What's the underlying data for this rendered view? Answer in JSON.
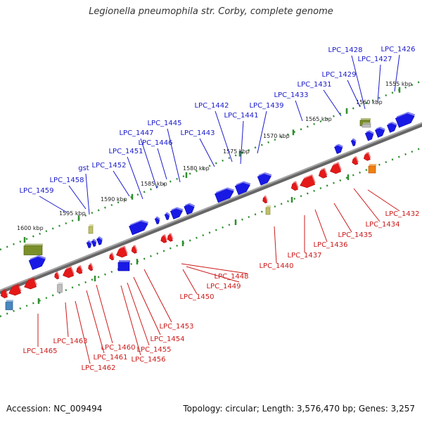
{
  "title": "Legionella pneumophila str. Corby, complete genome",
  "footer": {
    "accession": "Accession: NC_009494",
    "summary": "Topology: circular; Length: 3,576,470 bp; Genes: 3,257"
  },
  "colors": {
    "plus_strand": "#1a1ae6",
    "minus_strand": "#e61a1a",
    "backbone": "#808080",
    "ruler_dots": "#2f8f2f",
    "olive_feature": "#7a8f2a",
    "khaki_feature": "#bfbf6a",
    "gray_feature": "#bfbfbf",
    "orange_feature": "#f08010",
    "steel_feature": "#4a86c0"
  },
  "kbp_ticks": [
    "1555 kbp",
    "1560 kbp",
    "1565 kbp",
    "1570 kbp",
    "1575 kbp",
    "1580 kbp",
    "1585 kbp",
    "1590 kbp",
    "1595 kbp",
    "1600 kbp"
  ],
  "top_labels": [
    "LPC_1426",
    "LPC_1427",
    "LPC_1428",
    "LPC_1429",
    "LPC_1431",
    "LPC_1433",
    "LPC_1439",
    "LPC_1441",
    "LPC_1442",
    "LPC_1443",
    "LPC_1445",
    "LPC_1446",
    "LPC_1447",
    "LPC_1451",
    "LPC_1452",
    "gst",
    "LPC_1458",
    "LPC_1459"
  ],
  "bottom_labels": [
    "LPC_1432",
    "LPC_1434",
    "LPC_1435",
    "LPC_1436",
    "LPC_1437",
    "LPC_1440",
    "LPC_1448",
    "LPC_1449",
    "LPC_1450",
    "LPC_1453",
    "LPC_1454",
    "LPC_1455",
    "LPC_1456",
    "LPC_1460",
    "LPC_1461",
    "LPC_1462",
    "LPC_1463",
    "LPC_1465"
  ]
}
